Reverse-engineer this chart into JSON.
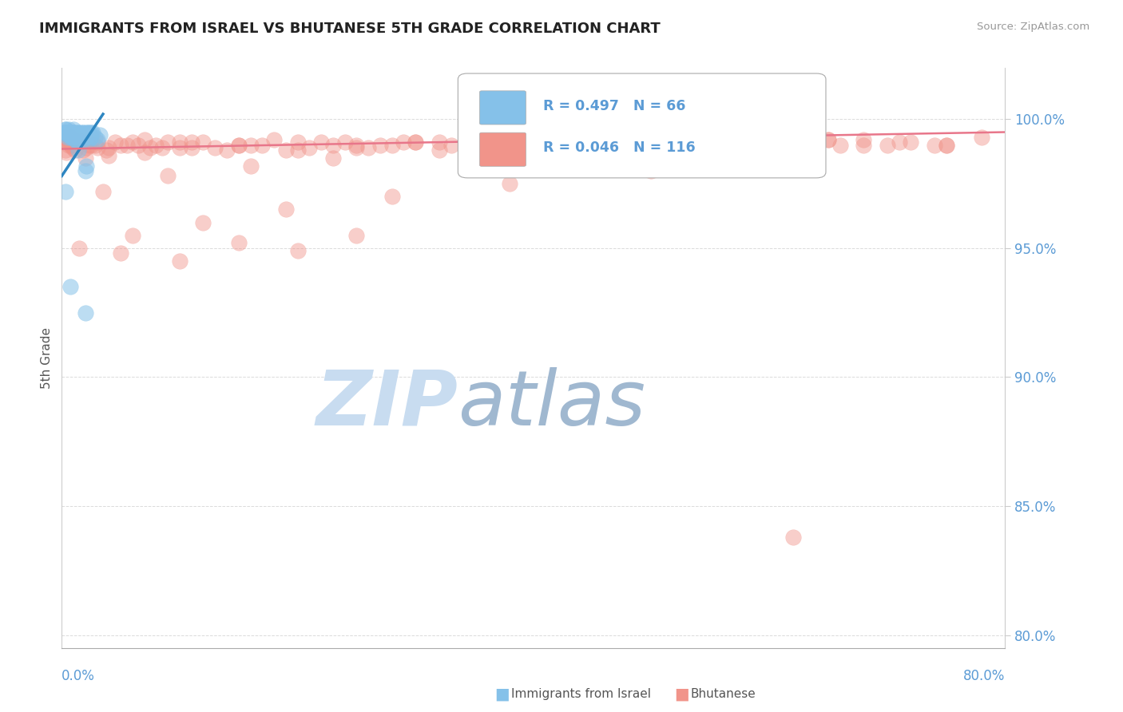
{
  "title": "IMMIGRANTS FROM ISRAEL VS BHUTANESE 5TH GRADE CORRELATION CHART",
  "source": "Source: ZipAtlas.com",
  "ylabel": "5th Grade",
  "y_ticks": [
    80.0,
    85.0,
    90.0,
    95.0,
    100.0
  ],
  "xlim": [
    0.0,
    80.0
  ],
  "ylim": [
    79.5,
    102.0
  ],
  "legend_israel_R": "R = 0.497",
  "legend_israel_N": "N = 66",
  "legend_bhutan_R": "R = 0.046",
  "legend_bhutan_N": "N = 116",
  "legend_label_israel": "Immigrants from Israel",
  "legend_label_bhutan": "Bhutanese",
  "israel_color": "#85C1E9",
  "bhutan_color": "#F1948A",
  "israel_line_color": "#2E86C1",
  "bhutan_line_color": "#E8768A",
  "background_color": "#FFFFFF",
  "title_color": "#222222",
  "tick_color": "#5B9BD5",
  "grid_color": "#CCCCCC",
  "watermark_zip_color": "#C8DCF0",
  "watermark_atlas_color": "#A0B8D0",
  "israel_x": [
    0.4,
    0.6,
    0.7,
    0.8,
    0.9,
    1.0,
    1.1,
    1.2,
    1.3,
    1.4,
    1.5,
    1.6,
    1.7,
    1.8,
    1.9,
    2.0,
    2.1,
    2.2,
    2.3,
    2.5,
    0.3,
    0.5,
    0.8,
    1.0,
    1.2,
    1.5,
    2.0,
    0.2,
    0.6,
    1.0,
    1.4,
    1.8,
    2.5,
    3.0,
    0.4,
    0.9,
    1.3,
    1.7,
    2.2,
    2.8,
    0.3,
    0.7,
    1.1,
    1.5,
    2.0,
    2.6,
    0.5,
    1.0,
    1.5,
    2.0,
    0.4,
    0.8,
    1.2,
    1.8,
    2.4,
    3.2,
    0.6,
    1.0,
    1.6,
    2.3,
    0.3,
    0.7,
    1.4,
    2.1,
    2.0,
    2.0
  ],
  "israel_y": [
    99.5,
    99.6,
    99.4,
    99.3,
    99.5,
    99.6,
    99.2,
    99.4,
    99.3,
    99.5,
    99.4,
    99.3,
    99.5,
    99.2,
    99.4,
    99.5,
    99.3,
    99.4,
    99.2,
    99.5,
    99.6,
    99.3,
    99.4,
    99.5,
    99.2,
    99.4,
    99.3,
    99.5,
    99.4,
    99.3,
    99.5,
    99.4,
    99.3,
    99.2,
    99.5,
    99.4,
    99.3,
    99.4,
    99.5,
    99.3,
    99.6,
    99.4,
    99.5,
    99.3,
    99.4,
    99.5,
    99.4,
    99.5,
    99.3,
    99.4,
    99.5,
    99.3,
    99.4,
    99.5,
    99.3,
    99.4,
    99.5,
    99.4,
    99.3,
    99.5,
    97.2,
    93.5,
    98.8,
    98.2,
    92.5,
    98.0
  ],
  "bhutan_x": [
    0.2,
    0.4,
    0.5,
    0.6,
    0.7,
    0.8,
    1.0,
    1.2,
    1.5,
    2.0,
    2.5,
    3.0,
    4.0,
    5.0,
    6.0,
    7.0,
    8.0,
    9.0,
    10.0,
    12.0,
    15.0,
    18.0,
    20.0,
    22.0,
    25.0,
    28.0,
    30.0,
    35.0,
    40.0,
    45.0,
    50.0,
    55.0,
    60.0,
    65.0,
    70.0,
    0.3,
    0.6,
    0.9,
    1.3,
    1.8,
    2.3,
    3.0,
    4.5,
    6.5,
    8.5,
    11.0,
    14.0,
    17.0,
    21.0,
    24.0,
    27.0,
    32.0,
    38.0,
    42.0,
    48.0,
    53.0,
    58.0,
    63.0,
    68.0,
    72.0,
    75.0,
    0.4,
    0.8,
    1.1,
    1.6,
    2.1,
    2.8,
    3.8,
    5.5,
    7.5,
    10.0,
    13.0,
    16.0,
    19.0,
    23.0,
    26.0,
    29.0,
    33.0,
    37.0,
    41.0,
    46.0,
    51.0,
    56.0,
    61.0,
    66.0,
    71.0,
    2.0,
    4.0,
    7.0,
    11.0,
    15.0,
    20.0,
    25.0,
    30.0,
    36.0,
    44.0,
    52.0,
    60.0,
    68.0,
    75.0,
    3.5,
    9.0,
    16.0,
    23.0,
    32.0,
    43.0,
    54.0,
    65.0,
    74.0,
    78.0,
    1.5,
    6.0,
    12.0,
    19.0,
    28.0,
    38.0,
    50.0
  ],
  "bhutan_y": [
    99.3,
    99.2,
    99.4,
    99.1,
    99.3,
    99.0,
    99.2,
    99.3,
    99.1,
    99.2,
    99.0,
    99.1,
    98.9,
    99.0,
    99.1,
    99.2,
    99.0,
    99.1,
    98.9,
    99.1,
    99.0,
    99.2,
    98.8,
    99.1,
    98.9,
    99.0,
    99.1,
    99.2,
    99.0,
    99.1,
    99.2,
    99.0,
    99.1,
    99.2,
    99.0,
    98.8,
    99.0,
    98.9,
    99.1,
    98.8,
    99.0,
    98.9,
    99.1,
    99.0,
    98.9,
    99.1,
    98.8,
    99.0,
    98.9,
    99.1,
    99.0,
    99.1,
    99.2,
    99.0,
    99.1,
    99.0,
    99.2,
    99.1,
    99.0,
    99.1,
    99.0,
    98.7,
    99.0,
    98.8,
    99.1,
    98.9,
    99.0,
    98.8,
    99.0,
    98.9,
    99.1,
    98.9,
    99.0,
    98.8,
    99.0,
    98.9,
    99.1,
    99.0,
    99.1,
    99.0,
    99.1,
    99.0,
    99.1,
    99.2,
    99.0,
    99.1,
    98.5,
    98.6,
    98.7,
    98.9,
    99.0,
    99.1,
    99.0,
    99.1,
    99.0,
    99.2,
    99.1,
    99.0,
    99.2,
    99.0,
    97.2,
    97.8,
    98.2,
    98.5,
    98.8,
    99.0,
    99.1,
    99.2,
    99.0,
    99.3,
    95.0,
    95.5,
    96.0,
    96.5,
    97.0,
    97.5,
    98.0
  ],
  "bhutan_mid_x": [
    5.0,
    10.0,
    15.0,
    20.0,
    25.0
  ],
  "bhutan_mid_y": [
    94.8,
    94.5,
    95.2,
    94.9,
    95.5
  ],
  "bhutan_outlier_x": [
    62.0
  ],
  "bhutan_outlier_y": [
    83.8
  ],
  "israel_line_x0": 0.0,
  "israel_line_y0": 97.8,
  "israel_line_x1": 3.5,
  "israel_line_y1": 100.2,
  "bhutan_line_x0": 0.0,
  "bhutan_line_y0": 98.85,
  "bhutan_line_x1": 80.0,
  "bhutan_line_y1": 99.5
}
